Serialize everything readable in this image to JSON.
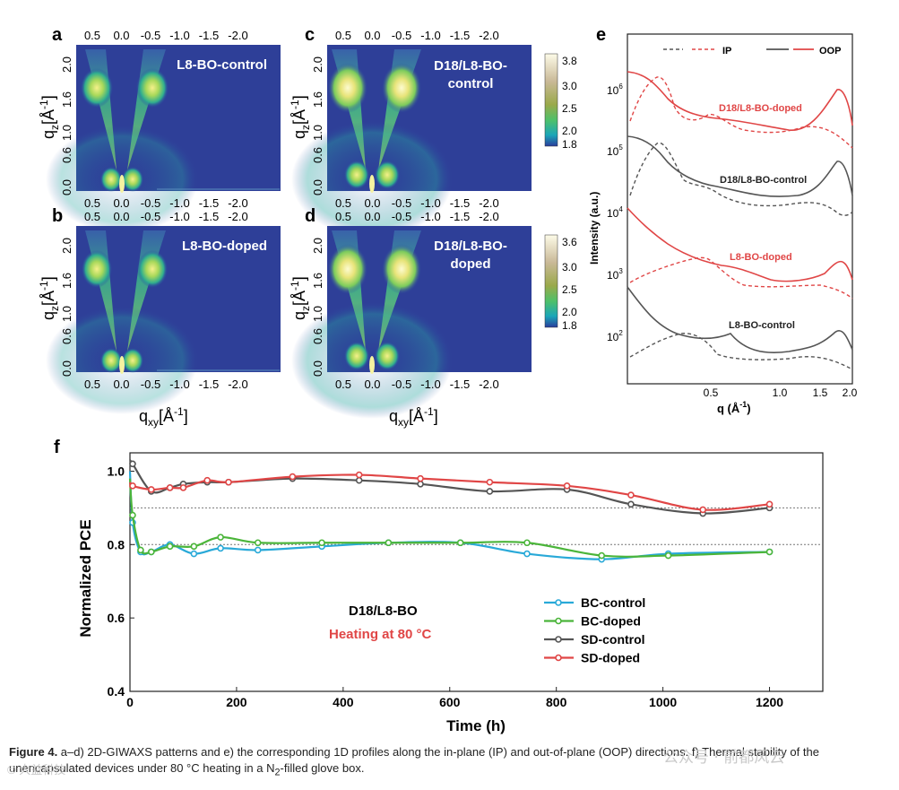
{
  "panels": {
    "a": {
      "letter": "a",
      "label": "L8-BO-control"
    },
    "b": {
      "letter": "b",
      "label": "L8-BO-doped"
    },
    "c": {
      "letter": "c",
      "label_line1": "D18/L8-BO-",
      "label_line2": "control"
    },
    "d": {
      "letter": "d",
      "label_line1": "D18/L8-BO-",
      "label_line2": "doped"
    }
  },
  "giwaxs": {
    "qxy_ticks": [
      "0.5",
      "0.0",
      "-0.5",
      "-1.0",
      "-1.5",
      "-2.0"
    ],
    "qz_ticks": [
      "0.0",
      "0.6",
      "1.0",
      "1.6",
      "2.0"
    ],
    "colorbar_ticks": [
      "3.8",
      "3.0",
      "2.5",
      "2.0",
      "1.8"
    ],
    "colorbar_ticks_d": [
      "3.6",
      "3.0",
      "2.5",
      "2.0",
      "1.8"
    ],
    "xlabel": "q",
    "xlabel_sub": "xy",
    "xlabel_unit": "[Å",
    "ylabel": "q",
    "ylabel_sub": "z",
    "ylabel_unit": "[Å",
    "inv": "-1",
    "close": "]"
  },
  "panel_e": {
    "letter": "e",
    "legend_ip": "IP",
    "legend_oop": "OOP",
    "ylabel": "Intensity (a.u.)",
    "xlabel": "q (Å",
    "xlabel_inv": "-1",
    "xlabel_close": ")",
    "x_ticks": [
      "0.5",
      "1.0",
      "1.5",
      "2.0"
    ],
    "y_ticks": [
      "10",
      "10",
      "10",
      "10",
      "10"
    ],
    "y_exp": [
      "6",
      "5",
      "4",
      "3",
      "2"
    ],
    "curve_labels": [
      "D18/L8-BO-doped",
      "D18/L8-BO-control",
      "L8-BO-doped",
      "L8-BO-control"
    ],
    "colors": {
      "red": "#e04646",
      "gray": "#555555"
    }
  },
  "panel_f": {
    "letter": "f",
    "annotation": "D18/L8-BO",
    "annotation2": "Heating at 80 °C",
    "ylabel": "Normalized PCE",
    "xlabel": "Time (h)"
  },
  "chart_data": {
    "type": "line",
    "xlabel": "Time (h)",
    "ylabel": "Normalized PCE",
    "xlim": [
      0,
      1300
    ],
    "ylim": [
      0.4,
      1.05
    ],
    "x_ticks": [
      0,
      200,
      400,
      600,
      800,
      1000,
      1200
    ],
    "y_ticks": [
      0.4,
      0.6,
      0.8,
      1.0
    ],
    "reference_lines": [
      0.9,
      0.8
    ],
    "legend_position": "right",
    "series": [
      {
        "name": "BC-control",
        "color": "#29a9d8",
        "x": [
          0,
          5,
          20,
          40,
          75,
          120,
          170,
          240,
          360,
          485,
          620,
          745,
          885,
          1010,
          1200
        ],
        "y": [
          1.0,
          0.86,
          0.78,
          0.78,
          0.8,
          0.775,
          0.79,
          0.785,
          0.795,
          0.805,
          0.805,
          0.775,
          0.76,
          0.775,
          0.78
        ]
      },
      {
        "name": "BC-doped",
        "color": "#4bb53a",
        "x": [
          0,
          5,
          20,
          40,
          75,
          120,
          170,
          240,
          360,
          485,
          620,
          745,
          885,
          1010,
          1200
        ],
        "y": [
          0.98,
          0.88,
          0.785,
          0.78,
          0.795,
          0.795,
          0.82,
          0.805,
          0.805,
          0.805,
          0.805,
          0.805,
          0.77,
          0.77,
          0.78
        ]
      },
      {
        "name": "SD-control",
        "color": "#555555",
        "x": [
          0,
          5,
          40,
          75,
          100,
          145,
          185,
          305,
          430,
          545,
          675,
          820,
          940,
          1075,
          1200
        ],
        "y": [
          1.03,
          1.02,
          0.945,
          0.955,
          0.965,
          0.97,
          0.97,
          0.98,
          0.975,
          0.965,
          0.945,
          0.95,
          0.91,
          0.885,
          0.9
        ]
      },
      {
        "name": "SD-doped",
        "color": "#e04646",
        "x": [
          0,
          5,
          40,
          75,
          100,
          145,
          185,
          305,
          430,
          545,
          675,
          820,
          940,
          1075,
          1200
        ],
        "y": [
          0.97,
          0.96,
          0.95,
          0.955,
          0.955,
          0.975,
          0.97,
          0.985,
          0.99,
          0.98,
          0.97,
          0.96,
          0.935,
          0.895,
          0.91
        ]
      }
    ]
  },
  "caption": {
    "label": "Figure 4.",
    "text": " a–d) 2D-GIWAXS patterns and e) the corresponding 1D profiles along the in-plane (IP) and out-of-plane (OOP) directions. f) Thermal stability of the unencapsulated devices under 80 °C heating in a N",
    "sub": "2",
    "text_end": "-filled glove box."
  },
  "watermark": {
    "left": "© 大益科技",
    "right": "公众号 · 前都风云"
  }
}
